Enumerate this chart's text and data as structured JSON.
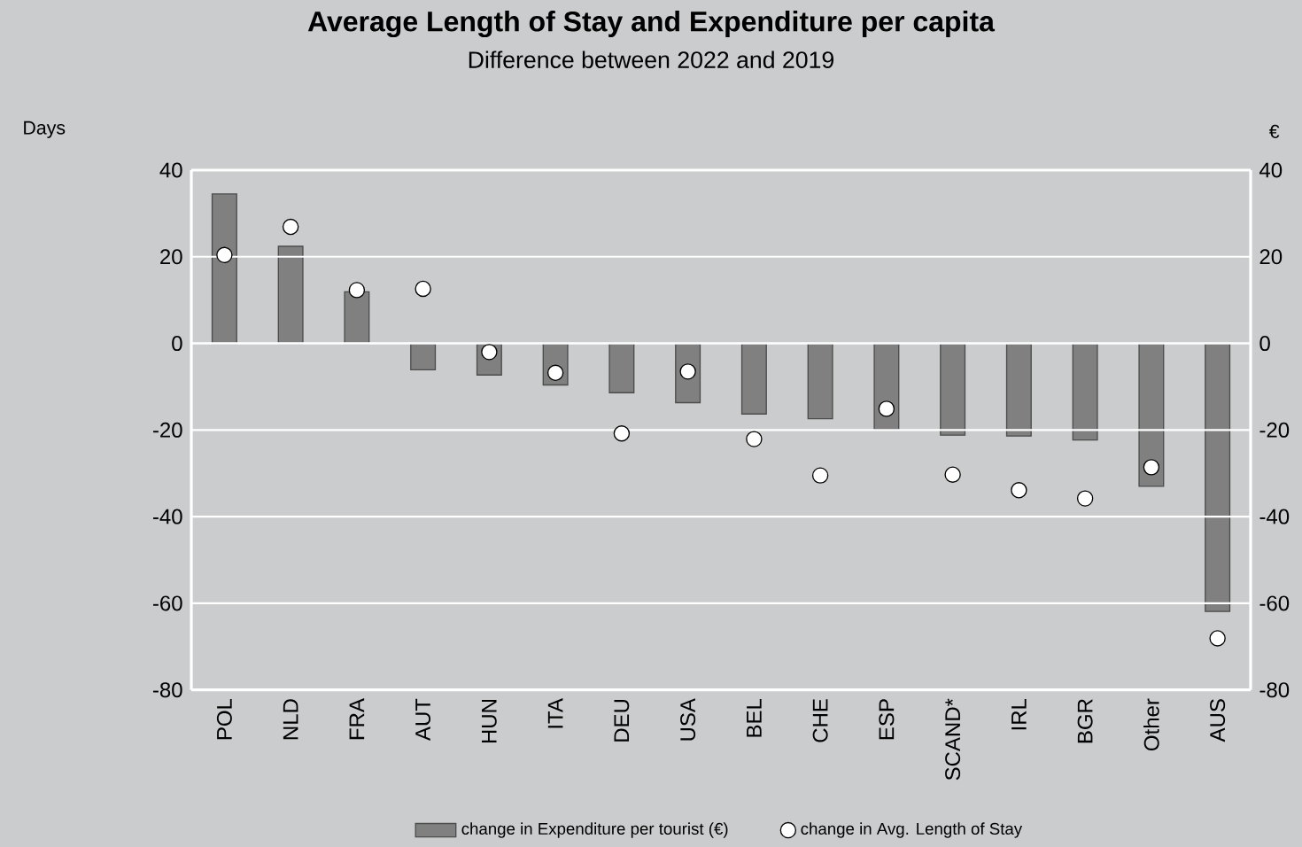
{
  "chart_data": {
    "type": "bar",
    "title": "Average Length of Stay and Expenditure per capita",
    "subtitle": "Difference between 2022 and 2019",
    "ylabel": "Days",
    "y2label": "€",
    "categories": [
      "POL",
      "NLD",
      "FRA",
      "AUT",
      "HUN",
      "ITA",
      "DEU",
      "USA",
      "BEL",
      "CHE",
      "ESP",
      "SCAND*",
      "IRL",
      "BGR",
      "Other",
      "AUS"
    ],
    "series": [
      {
        "name": "change in Expenditure per tourist (€)",
        "axis": "y2",
        "color": "#808080",
        "values": [
          34.5,
          22.4,
          11.9,
          -6.1,
          -7.3,
          -9.6,
          -11.4,
          -13.7,
          -16.3,
          -17.4,
          -19.9,
          -21.2,
          -21.4,
          -22.3,
          -33.0,
          -61.9
        ]
      },
      {
        "name": "change in Avg. Length of Stay",
        "type": "scatter",
        "color": "#ffffff",
        "values": [
          20.4,
          26.9,
          12.3,
          12.6,
          -2.0,
          -6.8,
          -20.8,
          -6.5,
          -22.1,
          -30.5,
          -15.1,
          -30.3,
          -33.9,
          -35.8,
          -28.6,
          -68.1
        ]
      }
    ],
    "ylim": [
      -80,
      40
    ],
    "yticks": [
      -80,
      -60,
      -40,
      -20,
      0,
      20,
      40
    ],
    "y2lim": [
      -80,
      40
    ],
    "y2ticks": [
      -80,
      -60,
      -40,
      -20,
      0,
      20,
      40
    ],
    "grid": "y",
    "legend": "bottom",
    "marker": "circle"
  }
}
